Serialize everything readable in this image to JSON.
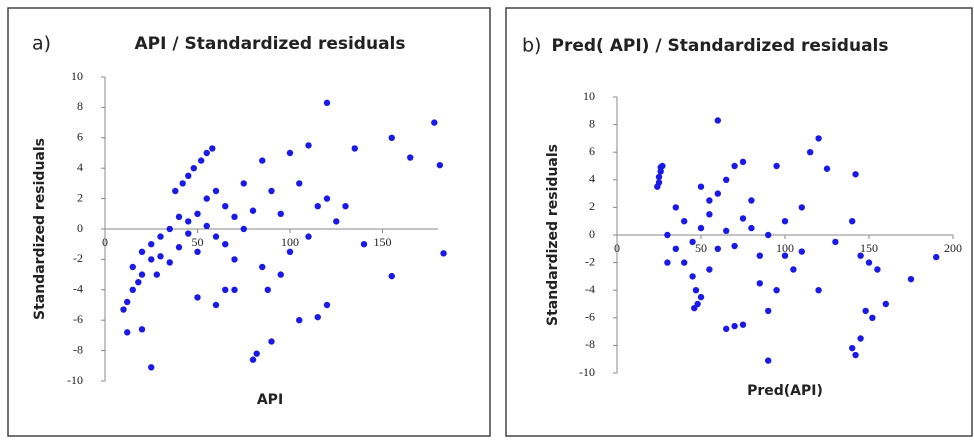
{
  "chart_data": [
    {
      "type": "scatter",
      "label": "a)",
      "title": "API / Standardized residuals",
      "x_label": "API",
      "y_label": "Standardized residuals",
      "xlim": [
        0,
        180
      ],
      "ylim": [
        -10,
        10
      ],
      "xticks": [
        0,
        50,
        100,
        150
      ],
      "yticks": [
        -10,
        -8,
        -6,
        -4,
        -2,
        0,
        2,
        4,
        6,
        8,
        10
      ],
      "series": [
        {
          "color": "#1a1ae6",
          "x": [
            20,
            25,
            30,
            35,
            40,
            45,
            50,
            55,
            60,
            65,
            70,
            50,
            40,
            30,
            35,
            55,
            60,
            65,
            70,
            75,
            80,
            45,
            25,
            15,
            20,
            15,
            10,
            12,
            18,
            28,
            38,
            42,
            45,
            48,
            52,
            55,
            58,
            75,
            85,
            90,
            95,
            100,
            105,
            110,
            110,
            100,
            95,
            88,
            65,
            50,
            120,
            115,
            125,
            130,
            135,
            120,
            155,
            165,
            178,
            181,
            183,
            155,
            140,
            80,
            82,
            90,
            105,
            115,
            120,
            25,
            20,
            12,
            70,
            60,
            85
          ],
          "y": [
            -1.5,
            -1,
            -0.5,
            0,
            -1.2,
            0.5,
            1,
            0.2,
            -0.5,
            1.5,
            0.8,
            -1.5,
            0.8,
            -1.8,
            -2.2,
            2,
            2.5,
            -1,
            -2,
            0,
            1.2,
            -0.3,
            -2,
            -2.5,
            -3,
            -4,
            -5.3,
            -4.8,
            -3.5,
            -3,
            2.5,
            3,
            3.5,
            4,
            4.5,
            5,
            5.3,
            3,
            4.5,
            2.5,
            1,
            5,
            3,
            5.5,
            -0.5,
            -1.5,
            -3,
            -4,
            -4,
            -4.5,
            2,
            1.5,
            0.5,
            1.5,
            5.3,
            8.3,
            6,
            4.7,
            7,
            4.2,
            -1.6,
            -3.1,
            -1,
            -8.6,
            -8.2,
            -7.4,
            -6,
            -5.8,
            -5,
            -9.1,
            -6.6,
            -6.8,
            -4,
            -5,
            -2.5
          ]
        }
      ]
    },
    {
      "type": "scatter",
      "label": "b)",
      "title": "Pred( API) / Standardized residuals",
      "x_label": "Pred(API)",
      "y_label": "Standardized residuals",
      "xlim": [
        0,
        200
      ],
      "ylim": [
        -10,
        10
      ],
      "xticks": [
        0,
        50,
        100,
        150,
        200
      ],
      "yticks": [
        -10,
        -8,
        -6,
        -4,
        -2,
        0,
        2,
        4,
        6,
        8,
        10
      ],
      "series": [
        {
          "color": "#1a1ae6",
          "x": [
            25,
            25,
            26,
            27,
            24,
            26,
            30,
            35,
            40,
            45,
            50,
            55,
            60,
            65,
            70,
            75,
            80,
            85,
            90,
            40,
            45,
            47,
            48,
            50,
            46,
            35,
            55,
            60,
            65,
            70,
            75,
            50,
            60,
            80,
            95,
            100,
            100,
            105,
            110,
            115,
            120,
            125,
            130,
            140,
            142,
            145,
            150,
            155,
            160,
            152,
            148,
            140,
            142,
            145,
            175,
            190,
            90,
            65,
            70,
            75,
            90,
            95,
            85,
            110,
            120,
            30,
            55
          ],
          "y": [
            3.8,
            4.2,
            4.6,
            5,
            3.5,
            4.9,
            0,
            -1,
            1,
            -0.5,
            0.5,
            1.5,
            -1,
            0.3,
            -0.8,
            1.2,
            0.5,
            -1.5,
            0,
            -2,
            -3,
            -4,
            -5,
            -4.5,
            -5.3,
            2,
            2.5,
            3,
            4,
            5,
            5.3,
            3.5,
            8.3,
            2.5,
            5,
            1,
            -1.5,
            -2.5,
            2,
            6,
            7,
            4.8,
            -0.5,
            1,
            4.4,
            -1.5,
            -2,
            -2.5,
            -5,
            -6,
            -5.5,
            -8.2,
            -8.7,
            -7.5,
            -3.2,
            -1.6,
            -9.1,
            -6.8,
            -6.6,
            -6.5,
            -5.5,
            -4,
            -3.5,
            -1.2,
            -4,
            -2,
            -2.5
          ]
        }
      ]
    }
  ]
}
